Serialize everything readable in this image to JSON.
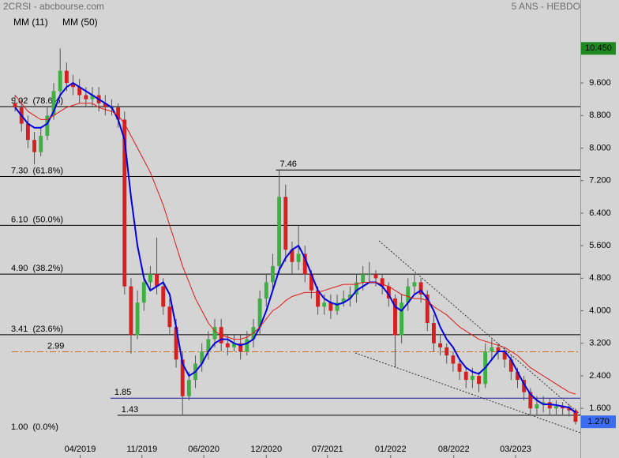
{
  "chart_data": {
    "type": "candlestick",
    "title": "2CRSI - abcbourse.com",
    "subtitle": "5 ANS - HEBDO",
    "up_color": "#3cb043",
    "down_color": "#d42020",
    "open": [
      9.1,
      9.0,
      8.6,
      8.2,
      7.9,
      8.3,
      8.8,
      9.4,
      9.9,
      9.6,
      9.5,
      9.3,
      9.2,
      9.3,
      9.1,
      9.0,
      9.0,
      8.7,
      4.6,
      3.4,
      4.2,
      4.7,
      4.9,
      4.6,
      4.1,
      3.6,
      2.8,
      1.9,
      2.3,
      2.7,
      3.0,
      3.3,
      3.6,
      3.2,
      3.1,
      3.2,
      3.0,
      3.3,
      3.6,
      4.3,
      4.7,
      5.1,
      6.8,
      5.5,
      5.2,
      5.4,
      4.9,
      4.5,
      4.1,
      4.2,
      4.0,
      4.2,
      4.3,
      4.4,
      4.7,
      4.9,
      4.9,
      4.8,
      4.6,
      4.3,
      3.4,
      4.2,
      4.6,
      4.7,
      4.4,
      3.7,
      3.2,
      3.1,
      2.9,
      2.7,
      2.5,
      2.3,
      2.4,
      2.2,
      3.0,
      3.1,
      3.0,
      2.8,
      2.5,
      2.3,
      2.0,
      1.6,
      1.7,
      1.75,
      1.6,
      1.65,
      1.6,
      1.55
    ],
    "high": [
      9.3,
      9.2,
      8.8,
      8.4,
      8.5,
      9.0,
      9.6,
      10.45,
      10.1,
      9.8,
      9.7,
      9.5,
      9.5,
      9.5,
      9.3,
      9.2,
      9.1,
      8.9,
      4.8,
      4.5,
      4.9,
      5.1,
      5.8,
      4.8,
      4.3,
      3.8,
      3.0,
      2.5,
      2.9,
      3.2,
      3.5,
      3.8,
      3.8,
      3.4,
      3.4,
      3.4,
      3.5,
      3.8,
      4.5,
      4.9,
      5.4,
      7.46,
      7.1,
      5.7,
      6.1,
      5.6,
      5.0,
      4.6,
      4.4,
      4.4,
      4.4,
      4.5,
      4.6,
      4.9,
      5.1,
      5.2,
      5.0,
      4.9,
      4.7,
      4.4,
      4.4,
      4.8,
      4.9,
      4.8,
      4.5,
      3.9,
      3.4,
      3.2,
      3.0,
      2.8,
      2.6,
      2.6,
      2.5,
      3.2,
      3.3,
      3.2,
      3.1,
      2.9,
      2.6,
      2.4,
      2.1,
      1.9,
      1.9,
      1.85,
      1.8,
      1.75,
      1.7,
      1.6
    ],
    "low": [
      8.9,
      8.4,
      8.0,
      7.6,
      7.8,
      8.2,
      8.7,
      9.3,
      9.4,
      9.3,
      9.1,
      9.0,
      9.0,
      8.9,
      8.8,
      8.8,
      8.5,
      4.4,
      2.95,
      3.3,
      4.0,
      4.5,
      4.4,
      3.9,
      3.4,
      2.6,
      1.45,
      1.8,
      2.1,
      2.5,
      2.8,
      3.1,
      3.0,
      2.9,
      3.0,
      2.8,
      2.9,
      3.1,
      3.4,
      4.1,
      4.5,
      4.9,
      5.2,
      4.9,
      5.0,
      4.7,
      4.3,
      3.9,
      3.9,
      3.8,
      3.9,
      4.1,
      4.1,
      4.2,
      4.5,
      4.7,
      4.6,
      4.4,
      4.1,
      2.6,
      3.2,
      4.0,
      4.4,
      4.2,
      3.5,
      3.0,
      2.9,
      2.7,
      2.5,
      2.3,
      2.1,
      2.1,
      2.0,
      2.1,
      2.8,
      2.8,
      2.6,
      2.3,
      2.1,
      1.8,
      1.45,
      1.45,
      1.5,
      1.45,
      1.45,
      1.45,
      1.4,
      1.2
    ],
    "close": [
      9.0,
      8.6,
      8.2,
      7.9,
      8.3,
      8.8,
      9.4,
      9.9,
      9.6,
      9.5,
      9.3,
      9.2,
      9.3,
      9.1,
      9.0,
      9.0,
      8.7,
      4.6,
      3.4,
      4.2,
      4.7,
      4.9,
      4.6,
      4.1,
      3.6,
      2.8,
      1.9,
      2.3,
      2.7,
      3.0,
      3.3,
      3.6,
      3.2,
      3.1,
      3.2,
      3.0,
      3.3,
      3.6,
      4.3,
      4.7,
      5.1,
      6.8,
      5.5,
      5.2,
      5.4,
      4.9,
      4.5,
      4.1,
      4.2,
      4.0,
      4.2,
      4.3,
      4.4,
      4.7,
      4.9,
      4.9,
      4.8,
      4.6,
      4.3,
      3.4,
      4.2,
      4.6,
      4.7,
      4.4,
      3.7,
      3.2,
      3.1,
      2.9,
      2.7,
      2.5,
      2.3,
      2.4,
      2.2,
      3.0,
      3.1,
      3.0,
      2.8,
      2.5,
      2.3,
      2.0,
      1.6,
      1.7,
      1.75,
      1.6,
      1.65,
      1.6,
      1.55,
      1.27
    ],
    "series": [
      {
        "name": "MM (11)",
        "color": "#0000e0",
        "values": [
          9.0,
          8.8,
          8.6,
          8.5,
          8.5,
          8.6,
          8.9,
          9.3,
          9.5,
          9.6,
          9.5,
          9.4,
          9.3,
          9.2,
          9.1,
          9.0,
          8.7,
          8.2,
          6.8,
          5.6,
          4.8,
          4.5,
          4.6,
          4.7,
          4.4,
          3.6,
          2.7,
          2.4,
          2.5,
          2.7,
          3.0,
          3.2,
          3.3,
          3.3,
          3.2,
          3.15,
          3.2,
          3.3,
          3.6,
          4.0,
          4.5,
          5.0,
          5.3,
          5.5,
          5.6,
          5.3,
          4.9,
          4.5,
          4.3,
          4.2,
          4.15,
          4.2,
          4.3,
          4.5,
          4.6,
          4.7,
          4.7,
          4.6,
          4.4,
          4.1,
          4.0,
          4.2,
          4.4,
          4.5,
          4.3,
          4.0,
          3.6,
          3.3,
          3.1,
          2.8,
          2.6,
          2.5,
          2.45,
          2.6,
          2.8,
          3.0,
          3.0,
          2.8,
          2.5,
          2.2,
          1.95,
          1.8,
          1.7,
          1.7,
          1.68,
          1.65,
          1.62,
          1.5
        ]
      },
      {
        "name": "MM (50)",
        "color": "#e01818",
        "values": [
          9.3,
          9.1,
          8.9,
          8.8,
          8.7,
          8.7,
          8.8,
          8.9,
          9.0,
          9.05,
          9.1,
          9.1,
          9.1,
          9.0,
          8.95,
          8.9,
          8.8,
          8.6,
          8.3,
          8.0,
          7.7,
          7.4,
          7.0,
          6.6,
          6.1,
          5.6,
          5.1,
          4.7,
          4.3,
          4.0,
          3.7,
          3.5,
          3.4,
          3.35,
          3.3,
          3.3,
          3.35,
          3.45,
          3.6,
          3.8,
          4.0,
          4.1,
          4.25,
          4.35,
          4.4,
          4.45,
          4.45,
          4.45,
          4.5,
          4.55,
          4.6,
          4.65,
          4.65,
          4.65,
          4.7,
          4.7,
          4.7,
          4.65,
          4.6,
          4.5,
          4.4,
          4.35,
          4.3,
          4.3,
          4.25,
          4.1,
          4.0,
          3.9,
          3.75,
          3.6,
          3.5,
          3.4,
          3.3,
          3.25,
          3.2,
          3.15,
          3.1,
          3.0,
          2.9,
          2.75,
          2.6,
          2.5,
          2.4,
          2.3,
          2.2,
          2.1,
          2.0,
          1.95
        ]
      }
    ],
    "xlim": [
      -0.5,
      87.5
    ],
    "xticks": [
      {
        "value": 10.1,
        "label": "04/2019"
      },
      {
        "value": 19.7,
        "label": "11/2019"
      },
      {
        "value": 29.3,
        "label": "06/2020"
      },
      {
        "value": 39,
        "label": "12/2020"
      },
      {
        "value": 48.5,
        "label": "07/2021"
      },
      {
        "value": 58.3,
        "label": "01/2022"
      },
      {
        "value": 68.1,
        "label": "08/2022"
      },
      {
        "value": 77.7,
        "label": "03/2023"
      }
    ],
    "ylim": [
      0.38,
      11.64
    ],
    "yticks": [
      {
        "value": 1.6,
        "label": "1.600"
      },
      {
        "value": 2.4,
        "label": "2.400"
      },
      {
        "value": 3.2,
        "label": "3.200"
      },
      {
        "value": 4,
        "label": "4.000"
      },
      {
        "value": 4.8,
        "label": "4.800"
      },
      {
        "value": 5.6,
        "label": "5.600"
      },
      {
        "value": 6.4,
        "label": "6.400"
      },
      {
        "value": 7.2,
        "label": "7.200"
      },
      {
        "value": 8,
        "label": "8.000"
      },
      {
        "value": 8.8,
        "label": "8.800"
      },
      {
        "value": 9.6,
        "label": "9.600"
      }
    ],
    "fib_levels": [
      {
        "value": 9.02,
        "label": "9.02  (78.6%)"
      },
      {
        "value": 7.3,
        "label": "7.30  (61.8%)"
      },
      {
        "value": 6.1,
        "label": "6.10  (50.0%)"
      },
      {
        "value": 4.9,
        "label": "4.90  (38.2%)"
      },
      {
        "value": 3.41,
        "label": "3.41  (23.6%)"
      },
      {
        "value": 1.0,
        "label": "1.00  (0.0%)"
      }
    ],
    "price_lines": [
      {
        "value": 7.46,
        "color": "#000000",
        "x_start": 40.5
      },
      {
        "value": 2.99,
        "color": "#cc6a10",
        "dashed": true,
        "x_start": -0.5
      },
      {
        "value": 1.85,
        "color": "#1a1aa0",
        "x_start": 14.8
      },
      {
        "value": 1.43,
        "color": "#000000",
        "x_start": 15.9
      }
    ],
    "high_label": {
      "value": 10.45,
      "label": "10.450",
      "color": "#1f8a1f"
    },
    "last_label": {
      "value": 1.27,
      "label": "1.270",
      "color": "#3a6df0"
    }
  }
}
